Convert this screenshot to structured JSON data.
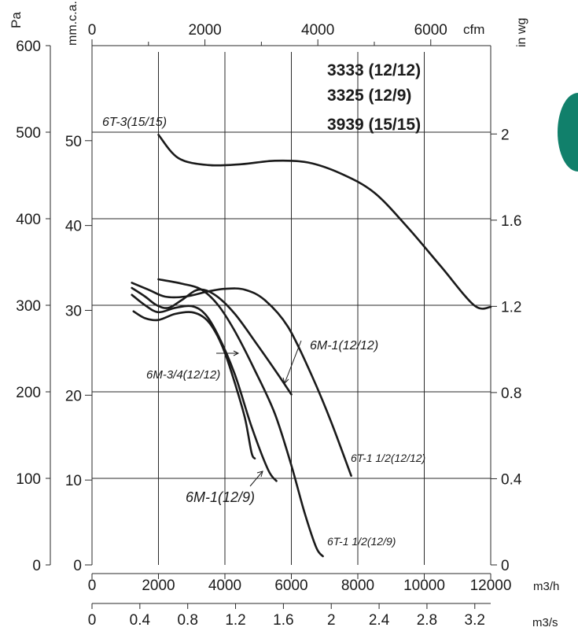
{
  "colors": {
    "tab": "#11806b",
    "ink": "#1a1a1a"
  },
  "tab_icon": "green-side-tab",
  "models": [
    "3333 (12/12)",
    "3325 (12/9)",
    "3939 (15/15)"
  ],
  "chart_data": {
    "type": "line",
    "x": {
      "label": "m3/h",
      "range": [
        0,
        12000
      ],
      "grid": true,
      "ticks": [
        0,
        2000,
        4000,
        6000,
        8000,
        10000,
        12000
      ],
      "tick_labels": [
        "0",
        "2000",
        "4000",
        "6000",
        "8000",
        "10000",
        "12000"
      ]
    },
    "y": {
      "label": "Pa",
      "range": [
        0,
        600
      ],
      "grid": true,
      "ticks": [
        0,
        100,
        200,
        300,
        400,
        500,
        600
      ],
      "tick_labels": [
        "0",
        "100",
        "200",
        "300",
        "400",
        "500",
        "600"
      ]
    },
    "x_top": {
      "label": "cfm",
      "range": [
        0,
        7062
      ],
      "ticks": [
        0,
        2000,
        4000,
        6000
      ],
      "tick_labels": [
        "0",
        "2000",
        "4000",
        "6000"
      ]
    },
    "x_bottom2": {
      "label": "m3/s",
      "range": [
        0,
        3.333
      ],
      "ticks": [
        0,
        0.4,
        0.8,
        1.2,
        1.6,
        2,
        2.4,
        2.8,
        3.2
      ],
      "tick_labels": [
        "0",
        "0.4",
        "0.8",
        "1.2",
        "1.6",
        "2",
        "2.4",
        "2.8",
        "3.2"
      ]
    },
    "y_left2": {
      "label": "mm.c.a.",
      "range": [
        0,
        61.2
      ],
      "ticks": [
        0,
        10,
        20,
        30,
        40,
        50
      ],
      "tick_labels": [
        "0",
        "10",
        "20",
        "30",
        "40",
        "50"
      ]
    },
    "y_right": {
      "label": "in wg",
      "range": [
        0,
        2.41
      ],
      "ticks": [
        0,
        0.4,
        0.8,
        1.2,
        1.6,
        2
      ],
      "tick_labels": [
        "0",
        "0.4",
        "0.8",
        "1.2",
        "1.6",
        "2"
      ]
    },
    "series": [
      {
        "name": "6T-3(15/15)",
        "points": [
          [
            2000,
            497
          ],
          [
            2600,
            470
          ],
          [
            3500,
            462
          ],
          [
            4500,
            463
          ],
          [
            5500,
            467
          ],
          [
            6500,
            465
          ],
          [
            7500,
            452
          ],
          [
            8500,
            430
          ],
          [
            9500,
            390
          ],
          [
            10500,
            345
          ],
          [
            11500,
            300
          ],
          [
            12000,
            298
          ]
        ]
      },
      {
        "name": "6M-3/4(12/12)",
        "points": [
          [
            1250,
            293
          ],
          [
            1600,
            285
          ],
          [
            2000,
            283
          ],
          [
            2500,
            290
          ],
          [
            3000,
            292
          ],
          [
            3400,
            285
          ],
          [
            3700,
            270
          ],
          [
            4000,
            245
          ],
          [
            4300,
            210
          ],
          [
            4600,
            170
          ],
          [
            4800,
            130
          ],
          [
            4900,
            123
          ]
        ]
      },
      {
        "name": "6M-1(12/9)",
        "points": [
          [
            1200,
            312
          ],
          [
            1600,
            300
          ],
          [
            2000,
            292
          ],
          [
            2500,
            297
          ],
          [
            3000,
            299
          ],
          [
            3400,
            290
          ],
          [
            3800,
            265
          ],
          [
            4300,
            220
          ],
          [
            4800,
            160
          ],
          [
            5300,
            110
          ],
          [
            5550,
            97
          ]
        ]
      },
      {
        "name": "6M-1(12/12)",
        "points": [
          [
            1200,
            320
          ],
          [
            1600,
            310
          ],
          [
            1950,
            300
          ],
          [
            2300,
            297
          ],
          [
            2700,
            306
          ],
          [
            3200,
            318
          ],
          [
            3700,
            312
          ],
          [
            4300,
            290
          ],
          [
            5000,
            253
          ],
          [
            5600,
            220
          ],
          [
            6000,
            197
          ]
        ]
      },
      {
        "name": "6T-1 1/2(12/12)",
        "points": [
          [
            1200,
            326
          ],
          [
            1700,
            318
          ],
          [
            2200,
            310
          ],
          [
            2800,
            310
          ],
          [
            3500,
            316
          ],
          [
            4000,
            319
          ],
          [
            4600,
            318
          ],
          [
            5200,
            306
          ],
          [
            5900,
            275
          ],
          [
            6600,
            220
          ],
          [
            7200,
            165
          ],
          [
            7800,
            103
          ]
        ]
      },
      {
        "name": "6T-1 1/2(12/9)",
        "points": [
          [
            2000,
            330
          ],
          [
            2700,
            325
          ],
          [
            3300,
            318
          ],
          [
            3800,
            300
          ],
          [
            4300,
            270
          ],
          [
            4900,
            225
          ],
          [
            5500,
            175
          ],
          [
            6000,
            115
          ],
          [
            6400,
            60
          ],
          [
            6750,
            20
          ],
          [
            6950,
            10
          ]
        ]
      }
    ],
    "annotations": [
      {
        "text": "6T-3(15/15)",
        "series": "6T-3(15/15)"
      },
      {
        "text": "6M-3/4(12/12)",
        "series": "6M-3/4(12/12)"
      },
      {
        "text": "6M-1(12/12)",
        "series": "6M-1(12/12)"
      },
      {
        "text": "6M-1(12/9)",
        "series": "6M-1(12/9)"
      },
      {
        "text": "6T-1 1/2(12/12)",
        "series": "6T-1 1/2(12/12)"
      },
      {
        "text": "6T-1 1/2(12/9)",
        "series": "6T-1 1/2(12/9)"
      }
    ]
  }
}
